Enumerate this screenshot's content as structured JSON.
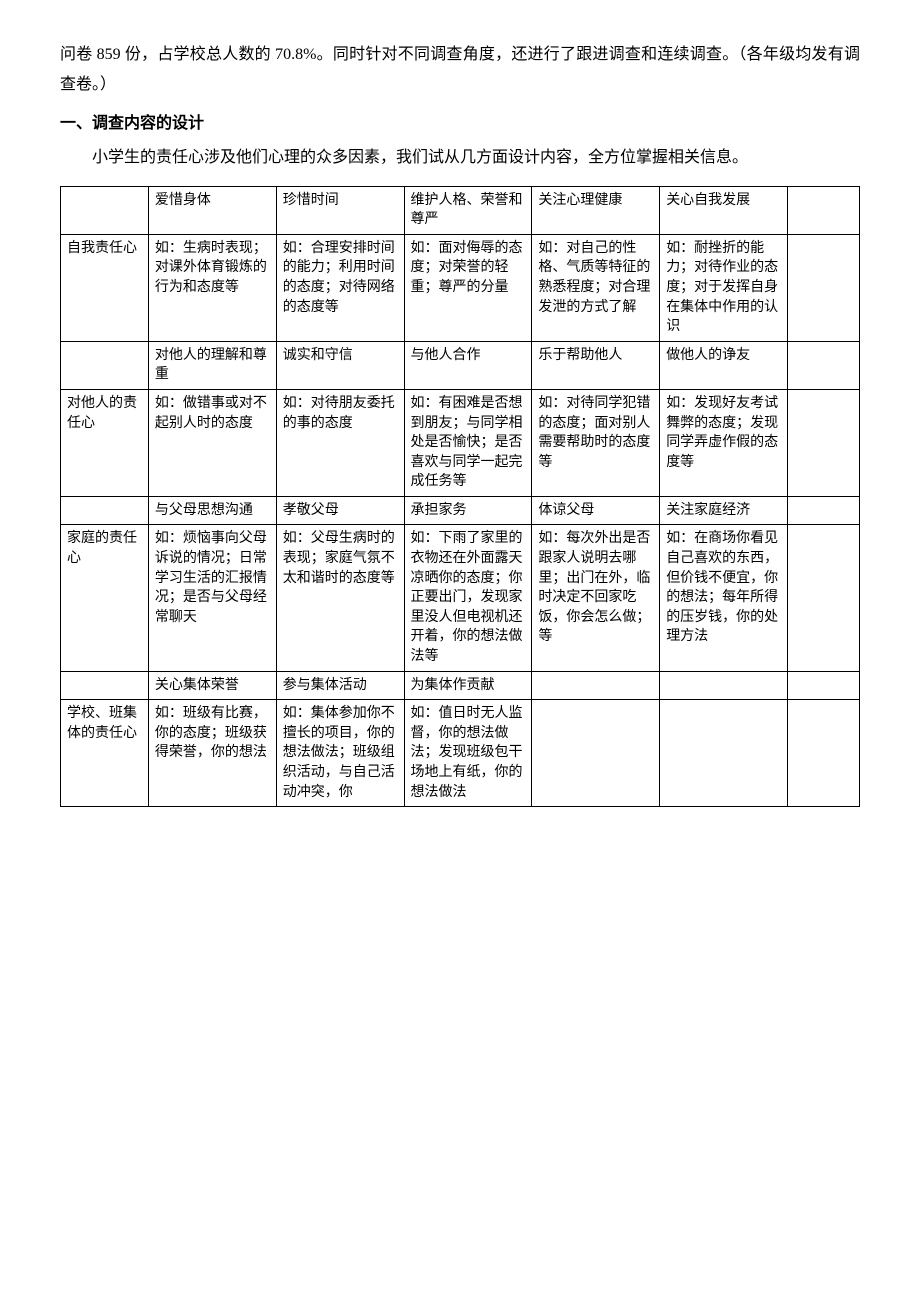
{
  "intro": {
    "p1": "问卷 859 份，占学校总人数的 70.8%。同时针对不同调查角度，还进行了跟进调查和连续调查。（各年级均发有调查卷。）",
    "heading": "一、调查内容的设计",
    "p2": "小学生的责任心涉及他们心理的众多因素，我们试从几方面设计内容，全方位掌握相关信息。"
  },
  "table": {
    "r1": {
      "c1": "",
      "c2": "爱惜身体",
      "c3": "珍惜时间",
      "c4": "维护人格、荣誉和尊严",
      "c5": "关注心理健康",
      "c6": "关心自我发展",
      "c7": ""
    },
    "r2": {
      "c1": "自我责任心",
      "c2": "如：生病时表现；对课外体育锻炼的行为和态度等",
      "c3": "如：合理安排时间的能力；利用时间的态度；对待网络的态度等",
      "c4": "如：面对侮辱的态度；对荣誉的轻重；尊严的分量",
      "c5": "如：对自己的性格、气质等特征的熟悉程度；对合理发泄的方式了解",
      "c6": "如：耐挫折的能力；对待作业的态度；对于发挥自身在集体中作用的认识",
      "c7": ""
    },
    "r3": {
      "c1": "",
      "c2": "对他人的理解和尊重",
      "c3": "诚实和守信",
      "c4": "与他人合作",
      "c5": "乐于帮助他人",
      "c6": "做他人的诤友",
      "c7": ""
    },
    "r4": {
      "c1": "对他人的责任心",
      "c2": "如：做错事或对不起别人时的态度",
      "c3": "如：对待朋友委托的事的态度",
      "c4": "如：有困难是否想到朋友；与同学相处是否愉快；是否喜欢与同学一起完成任务等",
      "c5": "如：对待同学犯错的态度；面对别人需要帮助时的态度等",
      "c6": "如：发现好友考试舞弊的态度；发现同学弄虚作假的态度等",
      "c7": ""
    },
    "r5": {
      "c1": "",
      "c2": "与父母思想沟通",
      "c3": "孝敬父母",
      "c4": "承担家务",
      "c5": "体谅父母",
      "c6": "关注家庭经济",
      "c7": ""
    },
    "r6": {
      "c1": "家庭的责任心",
      "c2": "如：烦恼事向父母诉说的情况；日常学习生活的汇报情况；是否与父母经常聊天",
      "c3": "如：父母生病时的表现；家庭气氛不太和谐时的态度等",
      "c4": "如：下雨了家里的衣物还在外面露天凉晒你的态度；你正要出门，发现家里没人但电视机还开着，你的想法做法等",
      "c5": "如：每次外出是否跟家人说明去哪里；出门在外，临时决定不回家吃饭，你会怎么做；等",
      "c6": "如：在商场你看见自己喜欢的东西，但价钱不便宜，你的想法；每年所得的压岁钱，你的处理方法",
      "c7": ""
    },
    "r7": {
      "c1": "",
      "c2": "关心集体荣誉",
      "c3": "参与集体活动",
      "c4": "为集体作贡献",
      "c5": "",
      "c6": "",
      "c7": ""
    },
    "r8": {
      "c1": "学校、班集体的责任心",
      "c2": "如：班级有比赛，你的态度；班级获得荣誉，你的想法",
      "c3": "如：集体参加你不擅长的项目，你的想法做法；班级组织活动，与自己活动冲突，你",
      "c4": "如：值日时无人监督，你的想法做法；发现班级包干场地上有纸，你的想法做法",
      "c5": "",
      "c6": "",
      "c7": ""
    }
  }
}
